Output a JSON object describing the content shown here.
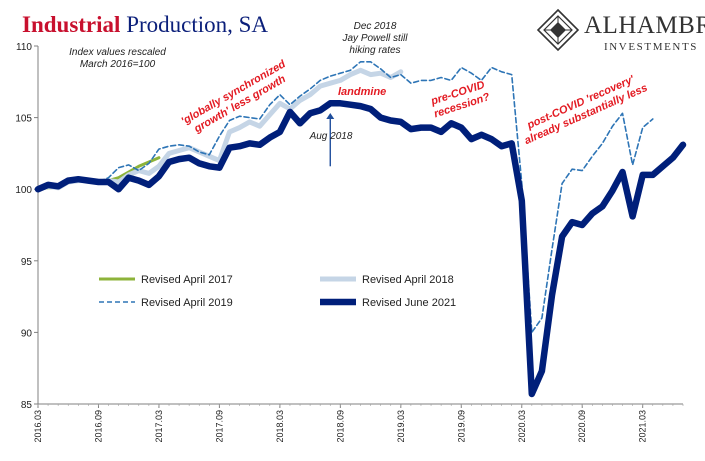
{
  "title": {
    "highlight": "Industrial",
    "rest": "Production, SA"
  },
  "logo": {
    "name": "ALHAMBRA",
    "subtitle": "INVESTMENTS"
  },
  "notes": {
    "index_line1": "Index values rescaled",
    "index_line2": "March 2016=100",
    "dec2018_line1": "Dec 2018",
    "dec2018_line2": "Jay Powell still",
    "dec2018_line3": "hiking rates",
    "aug2018": "Aug 2018"
  },
  "annotations": {
    "sync_line1": "'globally synchronized",
    "sync_line2": "growth' less growth",
    "landmine": "landmine",
    "precovid_line1": "pre-COVID",
    "precovid_line2": "recession?",
    "postcovid_line1": "post-COVID 'recovery'",
    "postcovid_line2": "already substantially less"
  },
  "colors": {
    "accent_red": "#e31b23",
    "title_red": "#c8102e",
    "title_navy": "#0b1f7a"
  },
  "chart_data": {
    "type": "line",
    "ylim": [
      85,
      110
    ],
    "yticks": [
      85,
      90,
      95,
      100,
      105,
      110
    ],
    "xlim": [
      "2016-03",
      "2021-07"
    ],
    "xticks": [
      "2016.03",
      "2016.09",
      "2017.03",
      "2017.09",
      "2018.03",
      "2018.09",
      "2019.03",
      "2019.09",
      "2020.03",
      "2020.09",
      "2021.03"
    ],
    "legend_position": "lower-left",
    "series": [
      {
        "name": "Revised April 2017",
        "color": "#8db33a",
        "width": 3,
        "dash": "",
        "x": [
          "2016-03",
          "2016-04",
          "2016-05",
          "2016-06",
          "2016-07",
          "2016-08",
          "2016-09",
          "2016-10",
          "2016-11",
          "2016-12",
          "2017-01",
          "2017-02",
          "2017-03"
        ],
        "values": [
          100.0,
          100.1,
          100.1,
          100.5,
          100.6,
          100.6,
          100.5,
          100.6,
          100.8,
          101.2,
          101.6,
          101.9,
          102.2
        ]
      },
      {
        "name": "Revised April 2018",
        "color": "#c5d5e6",
        "width": 5,
        "dash": "",
        "x": [
          "2016-03",
          "2016-04",
          "2016-05",
          "2016-06",
          "2016-07",
          "2016-08",
          "2016-09",
          "2016-10",
          "2016-11",
          "2016-12",
          "2017-01",
          "2017-02",
          "2017-03",
          "2017-04",
          "2017-05",
          "2017-06",
          "2017-07",
          "2017-08",
          "2017-09",
          "2017-10",
          "2017-11",
          "2017-12",
          "2018-01",
          "2018-02",
          "2018-03",
          "2018-04",
          "2018-05",
          "2018-06",
          "2018-07",
          "2018-08",
          "2018-09",
          "2018-10",
          "2018-11",
          "2018-12",
          "2019-01",
          "2019-02",
          "2019-03"
        ],
        "values": [
          100.0,
          100.2,
          100.1,
          100.5,
          100.6,
          100.6,
          100.5,
          100.6,
          100.5,
          101.0,
          101.3,
          101.1,
          101.6,
          102.5,
          102.7,
          102.9,
          102.6,
          102.3,
          102.0,
          104.0,
          104.3,
          104.7,
          104.4,
          105.2,
          106.0,
          105.6,
          106.2,
          106.6,
          107.2,
          107.4,
          107.6,
          108.0,
          108.3,
          108.0,
          108.1,
          107.8,
          108.2
        ]
      },
      {
        "name": "Revised April 2019",
        "color": "#2e75b6",
        "width": 1.6,
        "dash": "5,3",
        "x": [
          "2016-03",
          "2016-04",
          "2016-05",
          "2016-06",
          "2016-07",
          "2016-08",
          "2016-09",
          "2016-10",
          "2016-11",
          "2016-12",
          "2017-01",
          "2017-02",
          "2017-03",
          "2017-04",
          "2017-05",
          "2017-06",
          "2017-07",
          "2017-08",
          "2017-09",
          "2017-10",
          "2017-11",
          "2017-12",
          "2018-01",
          "2018-02",
          "2018-03",
          "2018-04",
          "2018-05",
          "2018-06",
          "2018-07",
          "2018-08",
          "2018-09",
          "2018-10",
          "2018-11",
          "2018-12",
          "2019-01",
          "2019-02",
          "2019-03",
          "2019-04",
          "2019-05",
          "2019-06",
          "2019-07",
          "2019-08",
          "2019-09",
          "2019-10",
          "2019-11",
          "2019-12",
          "2020-01",
          "2020-02",
          "2020-03",
          "2020-04",
          "2020-05",
          "2020-06",
          "2020-07",
          "2020-08",
          "2020-09",
          "2020-10",
          "2020-11",
          "2020-12",
          "2021-01",
          "2021-02",
          "2021-03",
          "2021-04"
        ],
        "values": [
          100.0,
          100.2,
          100.1,
          100.5,
          100.6,
          100.6,
          100.5,
          100.8,
          101.5,
          101.7,
          101.3,
          101.8,
          102.8,
          103.0,
          103.1,
          103.0,
          102.6,
          102.4,
          103.7,
          104.8,
          105.1,
          105.0,
          104.9,
          105.9,
          106.6,
          105.9,
          106.5,
          107.0,
          107.6,
          107.9,
          108.1,
          108.3,
          108.9,
          108.9,
          108.4,
          107.8,
          108.0,
          107.4,
          107.6,
          107.6,
          107.8,
          107.6,
          108.5,
          108.1,
          107.6,
          108.5,
          108.2,
          108.0,
          100.4,
          90.0,
          91.0,
          95.8,
          100.4,
          101.4,
          101.3,
          102.3,
          103.2,
          104.4,
          105.3,
          101.7,
          104.3,
          104.9
        ]
      },
      {
        "name": "Revised June 2021",
        "color": "#001f7a",
        "width": 6.5,
        "dash": "",
        "x": [
          "2016-03",
          "2016-04",
          "2016-05",
          "2016-06",
          "2016-07",
          "2016-08",
          "2016-09",
          "2016-10",
          "2016-11",
          "2016-12",
          "2017-01",
          "2017-02",
          "2017-03",
          "2017-04",
          "2017-05",
          "2017-06",
          "2017-07",
          "2017-08",
          "2017-09",
          "2017-10",
          "2017-11",
          "2017-12",
          "2018-01",
          "2018-02",
          "2018-03",
          "2018-04",
          "2018-05",
          "2018-06",
          "2018-07",
          "2018-08",
          "2018-09",
          "2018-10",
          "2018-11",
          "2018-12",
          "2019-01",
          "2019-02",
          "2019-03",
          "2019-04",
          "2019-05",
          "2019-06",
          "2019-07",
          "2019-08",
          "2019-09",
          "2019-10",
          "2019-11",
          "2019-12",
          "2020-01",
          "2020-02",
          "2020-03",
          "2020-04",
          "2020-05",
          "2020-06",
          "2020-07",
          "2020-08",
          "2020-09",
          "2020-10",
          "2020-11",
          "2020-12",
          "2021-01",
          "2021-02",
          "2021-03",
          "2021-04",
          "2021-05",
          "2021-06",
          "2021-07"
        ],
        "values": [
          100.0,
          100.3,
          100.2,
          100.6,
          100.7,
          100.6,
          100.5,
          100.5,
          100.0,
          100.8,
          100.6,
          100.3,
          100.9,
          101.9,
          102.1,
          102.2,
          101.8,
          101.6,
          101.5,
          102.9,
          103.0,
          103.2,
          103.1,
          103.6,
          104.0,
          105.4,
          104.6,
          105.3,
          105.5,
          106.0,
          106.0,
          105.9,
          105.8,
          105.6,
          105.0,
          104.8,
          104.7,
          104.2,
          104.3,
          104.3,
          104.0,
          104.6,
          104.3,
          103.5,
          103.8,
          103.5,
          103.0,
          103.2,
          99.2,
          85.7,
          87.3,
          92.6,
          96.7,
          97.7,
          97.5,
          98.3,
          98.8,
          99.9,
          101.2,
          98.1,
          101.0,
          101.0,
          101.6,
          102.2,
          103.1
        ]
      }
    ]
  }
}
